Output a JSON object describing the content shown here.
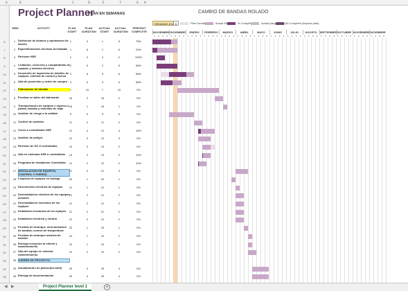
{
  "colors": {
    "plan": "#e8dde8",
    "actual": "#c8a8c8",
    "pct_complete": "#7a3d7a",
    "actual_beyond": "#c7b9c7",
    "pct_beyond": "#6a4b6a",
    "highlight": "#f5c890",
    "title": "#5b3a63"
  },
  "header": {
    "title": "Project Planner",
    "subtitle": "PLAN EN SEMANAS",
    "chart_title": "CAMBIO DE BANDAS ROLADO",
    "highlight_label": "SEMANAS (Hoy)",
    "highlight_value": "6"
  },
  "legend": [
    "Plan Duration",
    "Actual Start",
    "% Complete",
    "Actual (beyond plan)",
    "% Complete (beyond plan)"
  ],
  "columns": [
    "WBS",
    "ACTIVITY",
    "PLAN START",
    "PLAN DURATION",
    "ACTUAL START",
    "ACTUAL DURATION",
    "PERCENT COMPLETE"
  ],
  "months": [
    "NOVIEMBRE",
    "DICIEMBRE",
    "ENERO",
    "FEBRERO",
    "MARZO",
    "ABRIL",
    "MAYO",
    "JUNIO",
    "JULIO",
    "AGOSTO",
    "SEPTIEMBRE",
    "OCTUBRE",
    "NOVIEMBRE",
    "DICIEMBRE"
  ],
  "tasks": [
    {
      "wbs": "1",
      "activity": "Definicion de alcance y aprobacion de diseño",
      "ps": "1",
      "pd": "4",
      "as": "1",
      "ad": "6",
      "pct": "75%"
    },
    {
      "wbs": "2",
      "activity": "Especificaciones tecnicas Aerobadas",
      "ps": "1",
      "pd": "6",
      "as": "1",
      "ad": "6",
      "pct": "20%"
    },
    {
      "wbs": "3",
      "activity": "Revision HSE",
      "ps": "2",
      "pd": "2",
      "as": "2",
      "ad": "2",
      "pct": "100%"
    },
    {
      "wbs": "4",
      "activity": "Licitacion, concurso y comparativas de equipos y sistema electrico",
      "ps": "2",
      "pd": "5",
      "as": "2",
      "ad": "5",
      "pct": "98%"
    },
    {
      "wbs": "5",
      "activity": "Desarrollo de ingenieria de detalles de equipos, sistema de control y fuerza",
      "ps": "3",
      "pd": "6",
      "as": "5",
      "ad": "6",
      "pct": "68%"
    },
    {
      "wbs": "6",
      "activity": "Alta de proveedor y orden de compra",
      "ps": "3",
      "pd": "5",
      "as": "3",
      "ad": "5",
      "pct": "58%"
    },
    {
      "wbs": "7",
      "activity": "Fabricacion de bandas",
      "ps": "7",
      "pd": "10",
      "as": "7",
      "ad": "10",
      "pct": "0%"
    },
    {
      "wbs": "8",
      "activity": "Pruebas en taller del fabricante",
      "ps": "16",
      "pd": "2",
      "as": "16",
      "ad": "2",
      "pct": "0%"
    },
    {
      "wbs": "9",
      "activity": "Transportacion de equipos e ingreso a planta, bandas y sistemas de izaje",
      "ps": "18",
      "pd": "1",
      "as": "18",
      "ad": "1",
      "pct": "0%"
    },
    {
      "wbs": "10",
      "activity": "Analisis de riesgo a la calidad",
      "ps": "5",
      "pd": "6",
      "as": "5",
      "ad": "6",
      "pct": "0%"
    },
    {
      "wbs": "11",
      "activity": "Control de cambios",
      "ps": "11",
      "pd": "2",
      "as": "11",
      "ad": "2",
      "pct": "0%"
    },
    {
      "wbs": "12",
      "activity": "Curso a contratistas HSE",
      "ps": "12",
      "pd": "4",
      "as": "12",
      "ad": "4",
      "pct": "16%"
    },
    {
      "wbs": "13",
      "activity": "Analisis de peligro",
      "ps": "12",
      "pd": "3",
      "as": "12",
      "ad": "3",
      "pct": "0%"
    },
    {
      "wbs": "14",
      "activity": "Revision de DC-3 contratistas",
      "ps": "13",
      "pd": "3",
      "as": "13",
      "ad": "2",
      "pct": "0%"
    },
    {
      "wbs": "15",
      "activity": "Alta en sistemas HSE a contratistas",
      "ps": "13",
      "pd": "2",
      "as": "13",
      "ad": "2",
      "pct": "10%"
    },
    {
      "wbs": "16",
      "activity": "Programa de instalacion Contratista",
      "ps": "12",
      "pd": "2",
      "as": "12",
      "ad": "2",
      "pct": "10%"
    },
    {
      "wbs": "17",
      "activity": "INSTALACION DE EQUIPOS, CONTROL Y FUERZA",
      "ps": "21",
      "pd": "3",
      "as": "21",
      "ad": "3",
      "pct": "0%"
    },
    {
      "wbs": "18",
      "activity": "Limpieza de equipos en bodega",
      "ps": "20",
      "pd": "1",
      "as": "20",
      "ad": "1",
      "pct": "0%"
    },
    {
      "wbs": "19",
      "activity": "Desconexion electrica de equipos",
      "ps": "21",
      "pd": "1",
      "as": "21",
      "ad": "1",
      "pct": "0%"
    },
    {
      "wbs": "20",
      "activity": "Desinstalacion electrica de los equipos actuales",
      "ps": "21",
      "pd": "2",
      "as": "21",
      "ad": "2",
      "pct": "0%"
    },
    {
      "wbs": "21",
      "activity": "Desinstalacion mecanica de los equipos",
      "ps": "21",
      "pd": "2",
      "as": "21",
      "ad": "2",
      "pct": "0%"
    },
    {
      "wbs": "22",
      "activity": "Instalacion mecanica de los equipos",
      "ps": "21",
      "pd": "2",
      "as": "21",
      "ad": "2",
      "pct": "0%"
    },
    {
      "wbs": "23",
      "activity": "Instalacion electrica y control",
      "ps": "21",
      "pd": "2",
      "as": "21",
      "ad": "2",
      "pct": "0%"
    },
    {
      "wbs": "24",
      "activity": "Pruebas de arranque, sincronizacion de bandas, control de temperatura",
      "ps": "23",
      "pd": "1",
      "as": "23",
      "ad": "1",
      "pct": "0%"
    },
    {
      "wbs": "25",
      "activity": "Pruebas de arranque sistema de bandas",
      "ps": "24",
      "pd": "1",
      "as": "24",
      "ad": "1",
      "pct": "0%"
    },
    {
      "wbs": "26",
      "activity": "Entrega recepcion al cliente y mantenimiento",
      "ps": "24",
      "pd": "1",
      "as": "24",
      "ad": "1",
      "pct": "0%"
    },
    {
      "wbs": "27",
      "activity": "Alta del equipo en sistema mantenimiento",
      "ps": "24",
      "pd": "2",
      "as": "24",
      "ad": "2",
      "pct": "0%"
    },
    {
      "wbs": "28",
      "activity": "CIERRE DE PROYECTO",
      "ps": "",
      "pd": "",
      "as": "",
      "ad": "",
      "pct": ""
    },
    {
      "wbs": "29",
      "activity": "Actualizacion de planos(As-built)",
      "ps": "25",
      "pd": "4",
      "as": "25",
      "ad": "4",
      "pct": "0%"
    },
    {
      "wbs": "30",
      "activity": "Entrega de documentacion",
      "ps": "25",
      "pd": "4",
      "as": "25",
      "ad": "4",
      "pct": "0%"
    }
  ],
  "sheet_tab": "Project Planner level 1",
  "add_sheet": "+"
}
